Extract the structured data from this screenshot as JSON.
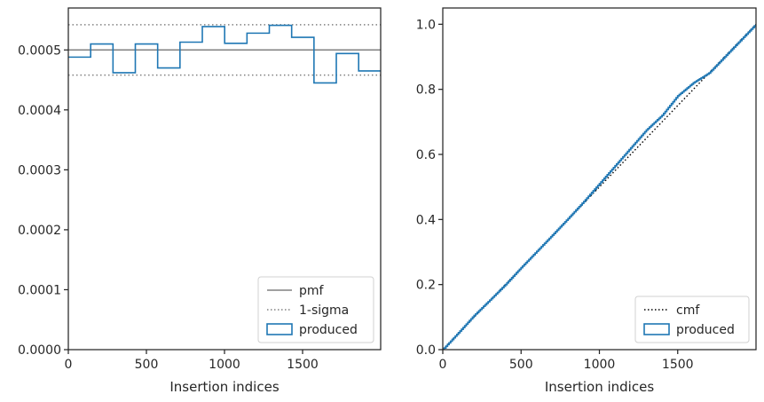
{
  "chart_data": [
    {
      "type": "line",
      "title": "",
      "xlabel": "Insertion indices",
      "ylabel": "",
      "xlim": [
        0,
        2000
      ],
      "ylim": [
        0,
        0.00057
      ],
      "xticks": [
        0,
        500,
        1000,
        1500
      ],
      "xtick_labels": [
        "0",
        "500",
        "1000",
        "1500"
      ],
      "yticks": [
        0,
        0.0001,
        0.0002,
        0.0003,
        0.0004,
        0.0005
      ],
      "ytick_labels": [
        "0.0000",
        "0.0001",
        "0.0002",
        "0.0003",
        "0.0004",
        "0.0005"
      ],
      "grid": false,
      "legend": {
        "position": "bottom-right",
        "entries": [
          "pmf",
          "1-sigma",
          "produced"
        ]
      },
      "series": [
        {
          "name": "pmf",
          "style": "solid",
          "color": "#808080",
          "values": [
            0.0005
          ]
        },
        {
          "name": "1-sigma",
          "style": "dotted",
          "color": "#808080",
          "values": [
            0.000542,
            0.000458
          ]
        },
        {
          "name": "produced",
          "style": "step",
          "color": "#1f77b4",
          "bin_edges": [
            0,
            143,
            286,
            429,
            572,
            715,
            858,
            1001,
            1144,
            1287,
            1430,
            1573,
            1716,
            1859,
            2000
          ],
          "values": [
            0.000488,
            0.00051,
            0.000462,
            0.00051,
            0.00047,
            0.000513,
            0.000539,
            0.000511,
            0.000528,
            0.000541,
            0.000521,
            0.000445,
            0.000494,
            0.000465
          ]
        }
      ]
    },
    {
      "type": "line",
      "title": "",
      "xlabel": "Insertion indices",
      "ylabel": "",
      "xlim": [
        0,
        2000
      ],
      "ylim": [
        0,
        1.05
      ],
      "xticks": [
        0,
        500,
        1000,
        1500
      ],
      "xtick_labels": [
        "0",
        "500",
        "1000",
        "1500"
      ],
      "yticks": [
        0,
        0.2,
        0.4,
        0.6,
        0.8,
        1.0
      ],
      "ytick_labels": [
        "0.0",
        "0.2",
        "0.4",
        "0.6",
        "0.8",
        "1.0"
      ],
      "grid": false,
      "legend": {
        "position": "bottom-right",
        "entries": [
          "cmf",
          "produced"
        ]
      },
      "series": [
        {
          "name": "cmf",
          "style": "dotted",
          "color": "#000000",
          "x": [
            0,
            2000
          ],
          "y": [
            0,
            1.0
          ]
        },
        {
          "name": "produced",
          "style": "step",
          "color": "#1f77b4",
          "x": [
            0,
            100,
            200,
            300,
            400,
            500,
            600,
            700,
            800,
            900,
            1000,
            1100,
            1200,
            1300,
            1400,
            1500,
            1600,
            1700,
            1800,
            1900,
            2000
          ],
          "y": [
            0,
            0.052,
            0.105,
            0.152,
            0.2,
            0.252,
            0.302,
            0.352,
            0.403,
            0.455,
            0.51,
            0.565,
            0.62,
            0.675,
            0.72,
            0.78,
            0.82,
            0.85,
            0.9,
            0.95,
            1.0
          ]
        }
      ]
    }
  ]
}
